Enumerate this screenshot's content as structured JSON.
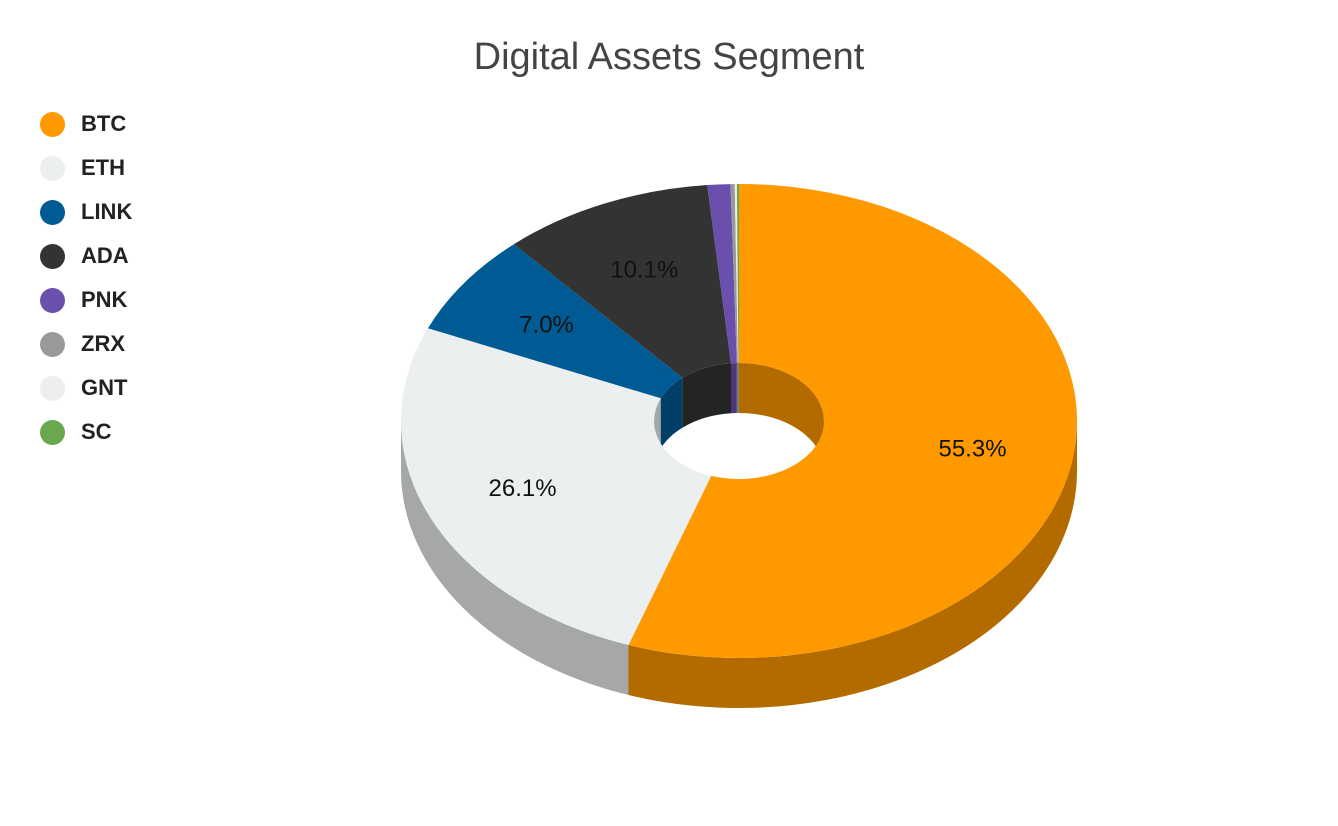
{
  "chart_data": {
    "type": "pie",
    "title": "Digital Assets Segment",
    "style": "3d-donut",
    "legend_position": "left",
    "slices": [
      {
        "name": "BTC",
        "value": 55.3,
        "color": "#ff9900",
        "label": "55.3%"
      },
      {
        "name": "ETH",
        "value": 26.1,
        "color": "#ebeff0",
        "label": "26.1%"
      },
      {
        "name": "LINK",
        "value": 7.0,
        "color": "#005b94",
        "label": "7.0%"
      },
      {
        "name": "ADA",
        "value": 10.1,
        "color": "#333333",
        "label": "10.1%"
      },
      {
        "name": "PNK",
        "value": 1.1,
        "color": "#6b4fad",
        "label": ""
      },
      {
        "name": "ZRX",
        "value": 0.2,
        "color": "#999999",
        "label": ""
      },
      {
        "name": "GNT",
        "value": 0.1,
        "color": "#eeeeee",
        "label": ""
      },
      {
        "name": "SC",
        "value": 0.1,
        "color": "#6aa84f",
        "label": ""
      }
    ]
  }
}
